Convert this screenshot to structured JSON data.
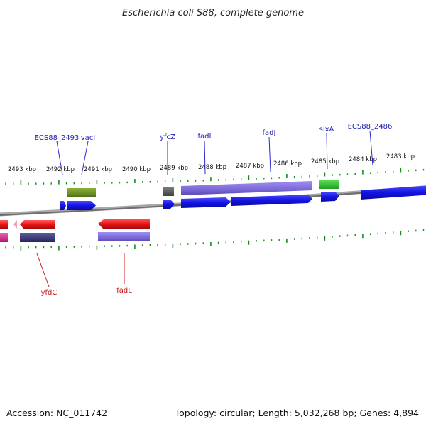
{
  "title": "Escherichia coli S88, complete genome",
  "footer": {
    "accession": "Accession: NC_011742",
    "summary": "Topology: circular; Length: 5,032,268 bp; Genes: 4,894"
  },
  "colors": {
    "forward_cds": "#1414e6",
    "reverse_cds": "#e61414",
    "lilac_feature": "#7b68d8",
    "navy_feature": "#3c3c78",
    "olive_feature": "#6b8e23",
    "grey_feature": "#606060",
    "green_feature": "#32cd32",
    "pink_feature": "#e0288c",
    "tick": "#1a8c1a",
    "backbone": "#808080",
    "top_label": "#1f1fb0",
    "bottom_label": "#c81414"
  },
  "scale": {
    "unit": "kbp",
    "major_ticks": [
      "2493 kbp",
      "2492 kbp",
      "2491 kbp",
      "2490 kbp",
      "2489 kbp",
      "2488 kbp",
      "2487 kbp",
      "2486 kbp",
      "2485 kbp",
      "2484 kbp",
      "2483 kbp"
    ]
  },
  "genes_top": [
    "ECS88_2493",
    "vacJ",
    "yfcZ",
    "fadI",
    "fadJ",
    "sixA",
    "ECS88_2486"
  ],
  "genes_bottom": [
    "yfdC",
    "fadL"
  ]
}
